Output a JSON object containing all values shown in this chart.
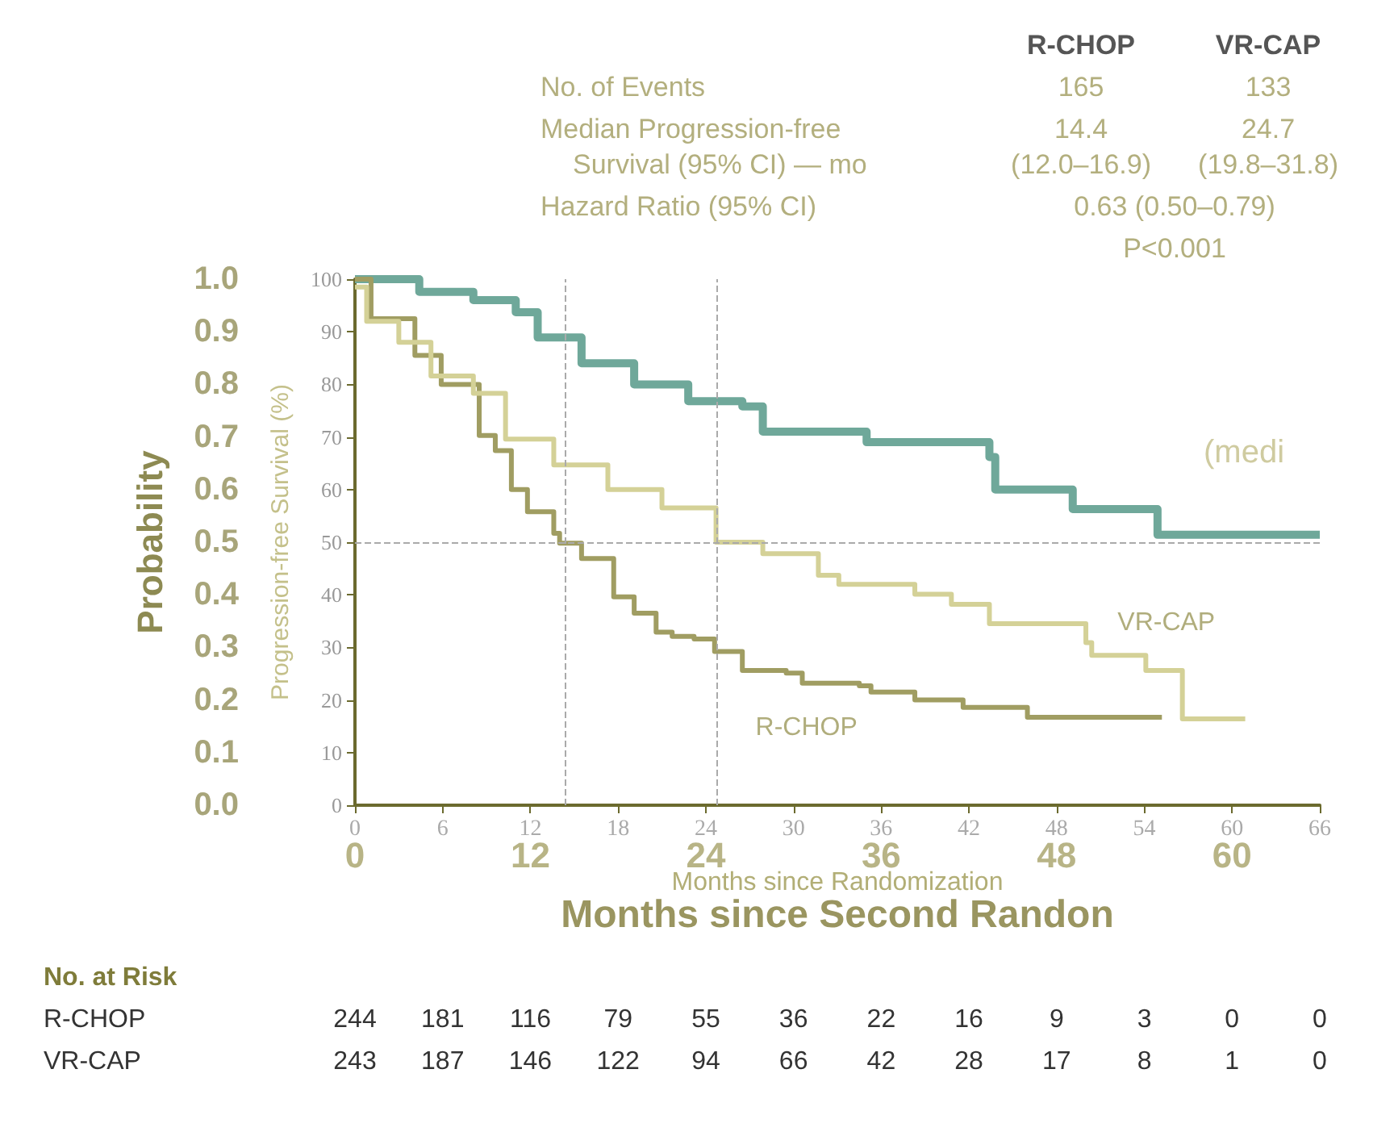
{
  "chart_data": {
    "type": "step",
    "xlabel": "Months since Randomization",
    "ylabel": "Progression-free Survival (%)",
    "y2label": "Probability",
    "x2label": "Months since Second Randon",
    "xlim": [
      0,
      66
    ],
    "xticks": [
      0,
      6,
      12,
      18,
      24,
      30,
      36,
      42,
      48,
      54,
      60,
      66
    ],
    "ylim": [
      0,
      100
    ],
    "yticks": [
      0,
      10,
      20,
      30,
      40,
      50,
      60,
      70,
      80,
      90,
      100
    ],
    "x2lim": [
      0,
      66
    ],
    "x2ticks": [
      0,
      12,
      24,
      36,
      48,
      60
    ],
    "y2lim": [
      0,
      1
    ],
    "y2ticks": [
      {
        "value": 0,
        "label": "0.0"
      },
      {
        "value": 0.1,
        "label": "0.1"
      },
      {
        "value": 0.2,
        "label": "0.2"
      },
      {
        "value": 0.3,
        "label": "0.3"
      },
      {
        "value": 0.4,
        "label": "0.4"
      },
      {
        "value": 0.5,
        "label": "0.5"
      },
      {
        "value": 0.6,
        "label": "0.6"
      },
      {
        "value": 0.7,
        "label": "0.7"
      },
      {
        "value": 0.8,
        "label": "0.8"
      },
      {
        "value": 0.9,
        "label": "0.9"
      },
      {
        "value": 1,
        "label": "1.0"
      }
    ],
    "grid": false,
    "legend": false,
    "series": [
      {
        "name": "R-CHOP",
        "color": "#a09d62",
        "x": [
          0,
          1.1,
          4.1,
          5.9,
          8.5,
          9.6,
          10.7,
          11.8,
          13.6,
          14.0,
          15.5,
          17.7,
          19.1,
          20.6,
          21.7,
          23.2,
          24.6,
          26.5,
          29.5,
          30.6,
          34.5,
          35.3,
          38.3,
          41.6,
          46,
          55.2
        ],
        "values": [
          100,
          92.5,
          85.5,
          80,
          70.3,
          67.4,
          60,
          55.8,
          51.7,
          49.8,
          46.9,
          39.6,
          36.5,
          32.9,
          32.1,
          31.6,
          29.2,
          25.6,
          25.1,
          23.2,
          22.7,
          21.5,
          20,
          18.6,
          16.7,
          16.7
        ]
      },
      {
        "name": "VR-CAP",
        "color": "#d4d197",
        "x": [
          0,
          0.8,
          3,
          5.2,
          8.1,
          10.3,
          13.6,
          17.3,
          21,
          24.7,
          27.9,
          31.7,
          33.1,
          37.9,
          38.3,
          40.8,
          43.4,
          48.2,
          50,
          50.4,
          54.1,
          56,
          56.6,
          60.9
        ],
        "values": [
          98.5,
          92,
          88,
          81.6,
          78.3,
          69.6,
          64.7,
          60,
          56.5,
          50,
          47.8,
          43.7,
          42,
          42,
          40.1,
          38.2,
          34.5,
          34.5,
          30.9,
          28.5,
          25.6,
          25.6,
          16.4,
          16.4
        ]
      },
      {
        "color": "#6fa89a",
        "axis": "y2",
        "x": [
          0,
          3.6,
          4.4,
          8.1,
          11,
          12.5,
          15.5,
          19.1,
          22.8,
          26.5,
          27.9,
          34.5,
          35,
          41.2,
          43.4,
          43.8,
          48.9,
          49.1,
          54.4,
          54.9,
          66
        ],
        "values": [
          1,
          1,
          0.976,
          0.96,
          0.937,
          0.889,
          0.84,
          0.8,
          0.768,
          0.758,
          0.71,
          0.71,
          0.69,
          0.69,
          0.662,
          0.6,
          0.6,
          0.563,
          0.563,
          0.514,
          0.514
        ]
      }
    ],
    "ref_lines": [
      {
        "axis": "y",
        "value": 50,
        "line_style": "dashed"
      },
      {
        "axis": "x",
        "value": 14.4,
        "line_style": "dashed"
      },
      {
        "axis": "x",
        "value": 24.7,
        "line_style": "dashed"
      }
    ],
    "annotations": [
      "R-CHOP",
      "VR-CAP",
      "No. of Events",
      "165",
      "133",
      "Median Progression-free",
      "14.4",
      "24.7",
      "Survival (95% CI) — mo",
      "(12.0–16.9)",
      "(19.8–31.8)",
      "Hazard Ratio (95% CI)",
      "0.63 (0.50–0.79)",
      "P<0.001",
      "(medi",
      "No. at Risk",
      "R-CHOP",
      "244 181 116 79 55 36 22 16 9 3 0 0",
      "VR-CAP",
      "243 187 146 122 94 66 42 28 17 8 1 0"
    ]
  }
}
